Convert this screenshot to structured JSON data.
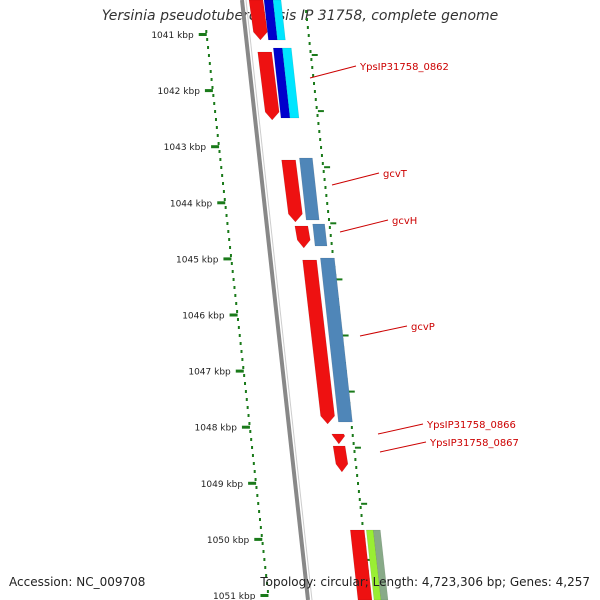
{
  "title": "Yersinia pseudotuberculosis IP 31758, complete genome",
  "accession_label": "Accession: NC_009708",
  "topology_label": "Topology: circular; Length: 4,723,306 bp; Genes: 4,257",
  "axis": {
    "unit_suffix": " kbp",
    "ticks": [
      "1041 kbp",
      "1042 kbp",
      "1043 kbp",
      "1044 kbp",
      "1045 kbp",
      "1046 kbp",
      "1047 kbp",
      "1048 kbp",
      "1049 kbp",
      "1050 kbp",
      "1051 kbp"
    ],
    "tick_color": "#1a7a1a"
  },
  "gene_labels": [
    "YpsIP31758_0862",
    "gcvT",
    "gcvH",
    "gcvP",
    "YpsIP31758_0866",
    "YpsIP31758_0867"
  ],
  "colors": {
    "label": "#cc0000",
    "gene_red": "#ee1111",
    "backbone": "#888888",
    "blue_dark": "#0000cc",
    "cyan": "#00e5ff",
    "steel_blue": "#4f86b8",
    "lime": "#99ee33",
    "gray_green": "#88aa88"
  }
}
